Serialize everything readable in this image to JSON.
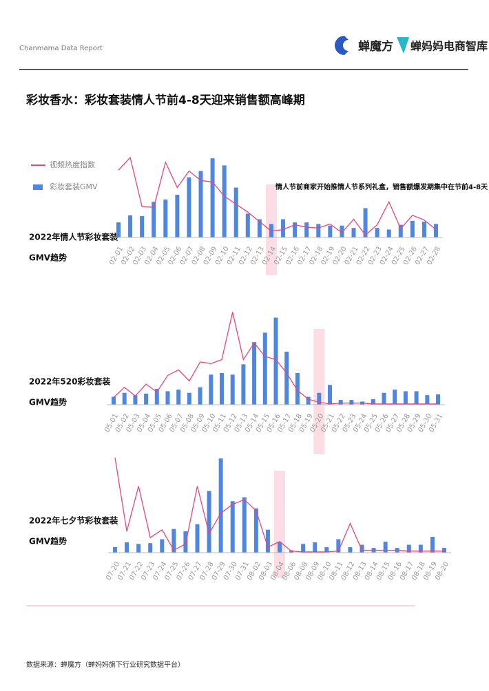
{
  "header": {
    "report": "Chanmama Data Report",
    "logo1": "蝉魔方",
    "logo2": "蝉妈妈电商智库"
  },
  "title": "彩妆香水：彩妆套装情人节前4-8天迎来销售额高峰期",
  "footer": "数据来源：蝉魔方（蝉妈妈旗下行业研究数据平台）",
  "chart_data": [
    {
      "type": "bar",
      "label_lines": [
        "2022年情人节彩妆套装",
        "GMV趋势"
      ],
      "annotation": "情人节前商家开始推情人节系列礼盒，销售额爆发期集中在节前4-8天",
      "highlight_index": 13,
      "ylim": [
        0,
        120
      ],
      "categories": [
        "02-01",
        "02-02",
        "02-03",
        "02-04",
        "02-05",
        "02-06",
        "02-07",
        "02-08",
        "02-09",
        "02-10",
        "02-11",
        "02-12",
        "02-13",
        "02-14",
        "02-15",
        "02-16",
        "02-17",
        "02-18",
        "02-19",
        "02-20",
        "02-21",
        "02-22",
        "02-23",
        "02-24",
        "02-25",
        "02-26",
        "02-27",
        "02-28"
      ],
      "series": [
        {
          "name": "彩妆套装GMV",
          "type": "bar",
          "color": "#4f86e0",
          "values": [
            19,
            28,
            27,
            45,
            48,
            54,
            76,
            84,
            100,
            91,
            63,
            30,
            23,
            17,
            23,
            19,
            19,
            17,
            15,
            15,
            12,
            37,
            12,
            10,
            16,
            21,
            20,
            17
          ]
        },
        {
          "name": "视频热度指数",
          "type": "line",
          "color": "#e8457a",
          "values": [
            85,
            101,
            39,
            38,
            95,
            63,
            84,
            72,
            70,
            52,
            42,
            32,
            20,
            8,
            10,
            16,
            13,
            12,
            17,
            6,
            23,
            3,
            16,
            45,
            11,
            28,
            22,
            10
          ]
        }
      ]
    },
    {
      "type": "bar",
      "label_lines": [
        "2022年520彩妆套装",
        "GMV趋势"
      ],
      "highlight_index": 19,
      "ylim": [
        0,
        120
      ],
      "categories": [
        "05-01",
        "05-02",
        "05-03",
        "05-04",
        "05-05",
        "05-06",
        "05-07",
        "05-08",
        "05-09",
        "05-10",
        "05-11",
        "05-12",
        "05-13",
        "05-14",
        "05-15",
        "05-16",
        "05-17",
        "05-18",
        "05-19",
        "05-20",
        "05-21",
        "05-22",
        "05-23",
        "05-24",
        "05-25",
        "05-26",
        "05-27",
        "05-28",
        "05-29",
        "05-30",
        "05-31"
      ],
      "series": [
        {
          "name": "彩妆套装GMV",
          "type": "bar",
          "color": "#4f86e0",
          "values": [
            10,
            15,
            12,
            14,
            20,
            17,
            19,
            15,
            22,
            38,
            40,
            38,
            51,
            79,
            91,
            110,
            67,
            40,
            10,
            15,
            25,
            6,
            6,
            4,
            7,
            15,
            19,
            17,
            17,
            12,
            13
          ]
        },
        {
          "name": "视频热度指数",
          "type": "line",
          "color": "#e8457a",
          "values": [
            9,
            22,
            11,
            26,
            16,
            37,
            44,
            30,
            54,
            52,
            57,
            117,
            57,
            78,
            61,
            57,
            40,
            18,
            7,
            3,
            1,
            2,
            2,
            2,
            1,
            1,
            1,
            1,
            1,
            1,
            1
          ]
        }
      ]
    },
    {
      "type": "bar",
      "label_lines": [
        "2022年七夕节彩妆套装",
        "GMV趋势"
      ],
      "highlight_index": 14,
      "ylim": [
        0,
        120
      ],
      "categories": [
        "07-20",
        "07-21",
        "07-22",
        "07-23",
        "07-24",
        "07-25",
        "07-26",
        "07-27",
        "07-28",
        "07-29",
        "07-30",
        "07-31",
        "08-02",
        "08-03",
        "08-04",
        "08-06",
        "08-08",
        "08-09",
        "08-10",
        "08-11",
        "08-12",
        "08-13",
        "08-14",
        "08-15",
        "08-16",
        "08-17",
        "08-18",
        "08-19",
        "08-20"
      ],
      "series": [
        {
          "name": "彩妆套装GMV",
          "type": "bar",
          "color": "#4f86e0",
          "values": [
            7,
            13,
            11,
            12,
            17,
            30,
            27,
            36,
            78,
            119,
            65,
            70,
            56,
            29,
            13,
            3,
            11,
            13,
            7,
            17,
            7,
            10,
            6,
            14,
            6,
            10,
            10,
            20,
            6
          ]
        },
        {
          "name": "视频热度指数",
          "type": "line",
          "color": "#e8457a",
          "values": [
            120,
            27,
            84,
            19,
            29,
            3,
            11,
            84,
            24,
            50,
            61,
            67,
            53,
            7,
            14,
            2,
            1,
            1,
            1,
            2,
            37,
            3,
            3,
            3,
            3,
            2,
            2,
            2,
            2
          ]
        }
      ]
    }
  ]
}
